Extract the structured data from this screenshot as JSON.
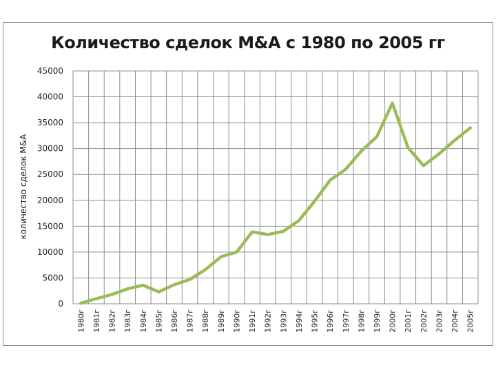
{
  "chart_data": {
    "type": "line",
    "title": "Количество сделок M&A с 1980 по 2005 гг",
    "ylabel": "количество сделок M&A",
    "xlabel": "",
    "ylim": [
      0,
      45000
    ],
    "yticks": [
      "0",
      "5000",
      "10000",
      "15000",
      "20000",
      "25000",
      "30000",
      "35000",
      "40000",
      "45000"
    ],
    "grid": true,
    "line_color": "#9bbb59",
    "categories": [
      "1980г",
      "1981г",
      "1982г",
      "1983г",
      "1984г",
      "1985г",
      "1986г",
      "1987г",
      "1988г",
      "1989г",
      "1990г",
      "1991г",
      "1992г",
      "1993г",
      "1994г",
      "1995г",
      "1996г",
      "1997г",
      "1998г",
      "1999г",
      "2000г",
      "2001г",
      "2002г",
      "2003г",
      "2004г",
      "2005г"
    ],
    "series": [
      {
        "values": [
          100,
          1000,
          1800,
          2900,
          3600,
          2300,
          3700,
          4700,
          6600,
          9100,
          10000,
          13900,
          13400,
          14000,
          16100,
          19800,
          23900,
          26000,
          29500,
          32300,
          38800,
          30200,
          26700,
          29000,
          31600,
          34000
        ]
      }
    ]
  }
}
